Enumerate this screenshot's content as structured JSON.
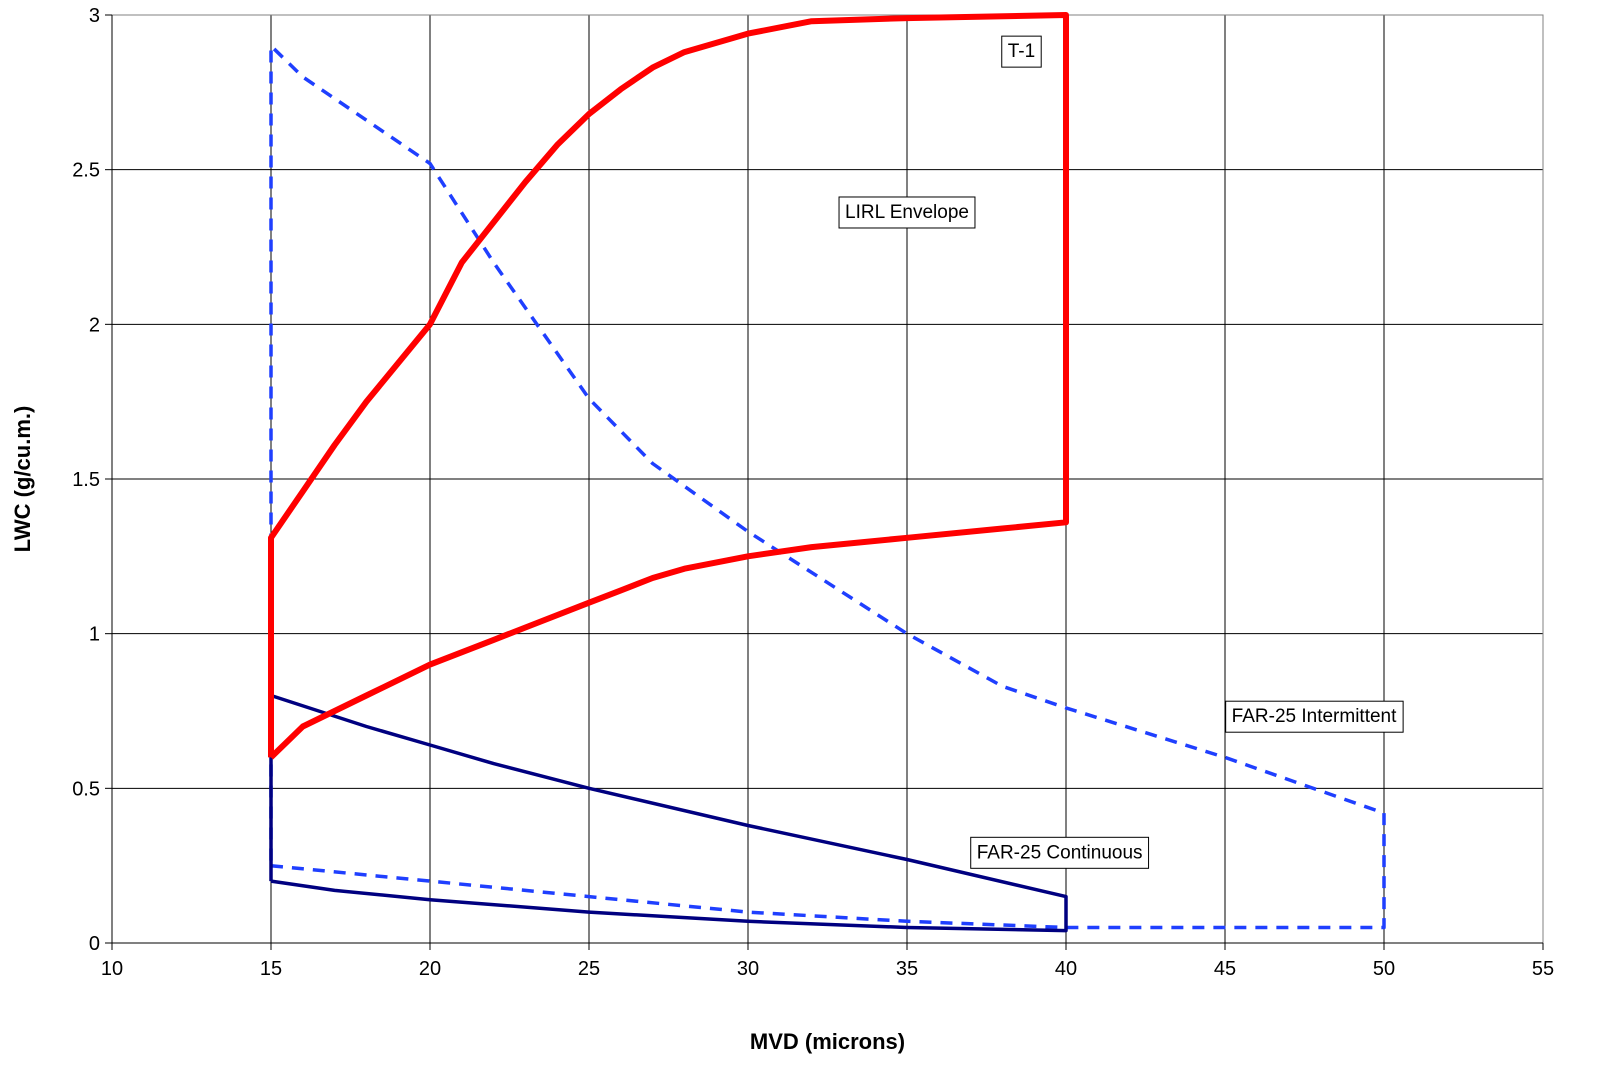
{
  "chart_data": {
    "type": "line",
    "xlabel": "MVD (microns)",
    "ylabel": "LWC (g/cu.m.)",
    "xlim": [
      10,
      55
    ],
    "ylim": [
      0,
      3
    ],
    "xticks": [
      "10",
      "15",
      "20",
      "25",
      "30",
      "35",
      "40",
      "45",
      "50",
      "55"
    ],
    "yticks": [
      "0",
      "0.5",
      "1",
      "1.5",
      "2",
      "2.5",
      "3"
    ],
    "grid": true,
    "series": [
      {
        "name": "LIRL Envelope",
        "color": "#ff0000",
        "style": "solid-thick",
        "points": [
          [
            15,
            0.6
          ],
          [
            16,
            0.7
          ],
          [
            18,
            0.8
          ],
          [
            20,
            0.9
          ],
          [
            22,
            0.98
          ],
          [
            23,
            1.02
          ],
          [
            25,
            1.1
          ],
          [
            26,
            1.14
          ],
          [
            27,
            1.18
          ],
          [
            28,
            1.21
          ],
          [
            30,
            1.25
          ],
          [
            32,
            1.28
          ],
          [
            35,
            1.31
          ],
          [
            38,
            1.34
          ],
          [
            40,
            1.36
          ],
          [
            40,
            3.0
          ],
          [
            35,
            2.99
          ],
          [
            32,
            2.98
          ],
          [
            30,
            2.94
          ],
          [
            28,
            2.88
          ],
          [
            27,
            2.83
          ],
          [
            26,
            2.76
          ],
          [
            25,
            2.68
          ],
          [
            24,
            2.58
          ],
          [
            23,
            2.46
          ],
          [
            21,
            2.2
          ],
          [
            20,
            2.0
          ],
          [
            18,
            1.75
          ],
          [
            17,
            1.61
          ],
          [
            16,
            1.46
          ],
          [
            15,
            1.31
          ],
          [
            15,
            0.6
          ]
        ]
      },
      {
        "name": "FAR-25 Intermittent",
        "color": "#1f3fff",
        "style": "dashed",
        "points": [
          [
            15,
            0.25
          ],
          [
            20,
            0.2
          ],
          [
            25,
            0.15
          ],
          [
            30,
            0.1
          ],
          [
            35,
            0.07
          ],
          [
            40,
            0.05
          ],
          [
            45,
            0.05
          ],
          [
            50,
            0.05
          ],
          [
            50,
            0.42
          ],
          [
            45,
            0.6
          ],
          [
            40,
            0.76
          ],
          [
            38,
            0.83
          ],
          [
            35,
            1.0
          ],
          [
            30,
            1.33
          ],
          [
            27,
            1.55
          ],
          [
            25,
            1.76
          ],
          [
            22,
            2.2
          ],
          [
            20,
            2.52
          ],
          [
            18,
            2.66
          ],
          [
            16,
            2.8
          ],
          [
            15,
            2.9
          ],
          [
            15,
            0.25
          ]
        ]
      },
      {
        "name": "FAR-25 Continuous",
        "color": "#000080",
        "style": "solid",
        "points": [
          [
            15,
            0.2
          ],
          [
            17,
            0.17
          ],
          [
            20,
            0.14
          ],
          [
            25,
            0.1
          ],
          [
            30,
            0.07
          ],
          [
            35,
            0.05
          ],
          [
            40,
            0.04
          ],
          [
            40,
            0.15
          ],
          [
            35,
            0.27
          ],
          [
            30,
            0.38
          ],
          [
            25,
            0.5
          ],
          [
            22,
            0.58
          ],
          [
            20,
            0.64
          ],
          [
            18,
            0.7
          ],
          [
            15,
            0.8
          ],
          [
            15,
            0.2
          ]
        ]
      }
    ],
    "annotations": [
      {
        "text": "T-1",
        "x": 38.6,
        "y": 2.88
      },
      {
        "text": "LIRL Envelope",
        "x": 35.0,
        "y": 2.36
      },
      {
        "text": "FAR-25 Intermittent",
        "x": 47.8,
        "y": 0.73
      },
      {
        "text": "FAR-25 Continuous",
        "x": 39.8,
        "y": 0.29
      }
    ]
  }
}
